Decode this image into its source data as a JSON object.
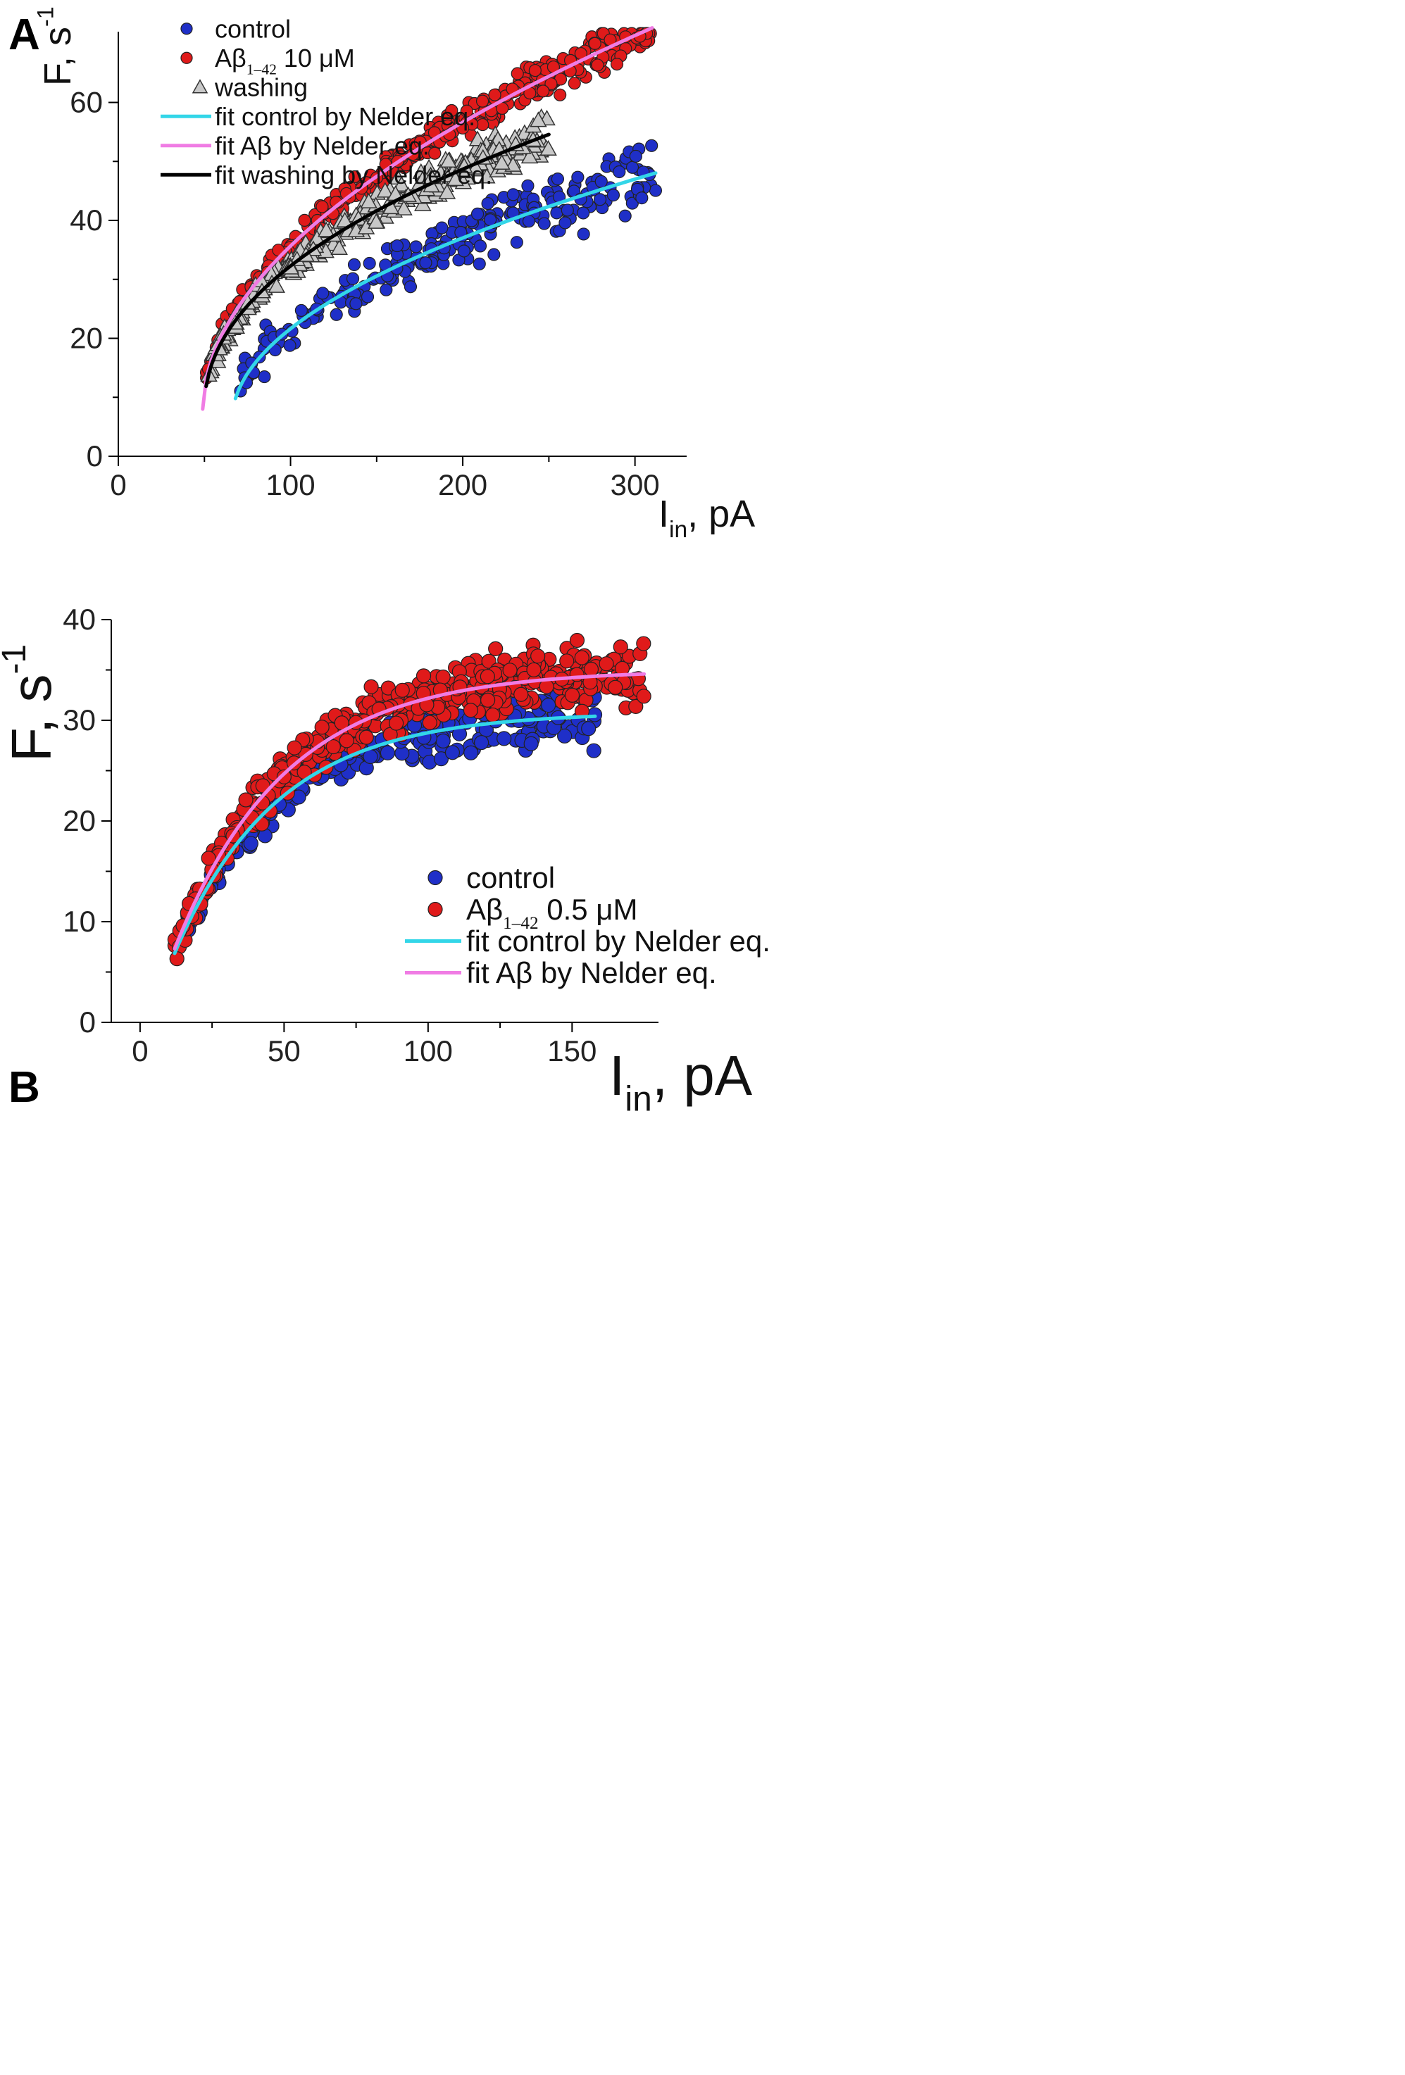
{
  "chart_data": [
    {
      "panel": "A",
      "type": "scatter",
      "xlabel": "I",
      "xlabel_sub": "in",
      "xlabel_unit": ", pA",
      "ylabel": "F, s",
      "ylabel_sup": "-1",
      "xlim": [
        0,
        330
      ],
      "ylim": [
        0,
        72
      ],
      "xticks": [
        0,
        100,
        200,
        300
      ],
      "yticks": [
        0,
        20,
        40,
        60
      ],
      "xtick_labels": [
        "0",
        "100",
        "200",
        "300"
      ],
      "ytick_labels": [
        "0",
        "20",
        "40",
        "60"
      ],
      "legend_position": "top-left",
      "series": [
        {
          "name": "control",
          "kind": "points",
          "marker": "circle",
          "color": "#1f2fc8",
          "x_range": [
            68,
            312
          ],
          "i0": 66,
          "f0": 6,
          "k": 2.68,
          "p": 0.5,
          "noise": 5,
          "count": 230,
          "seed": 11
        },
        {
          "name": "Aβ",
          "name_sub": "1–42",
          "name_rest": " 10 μM",
          "kind": "points",
          "marker": "circle",
          "color": "#e01a1a",
          "x_range": [
            50,
            310
          ],
          "i0": 49,
          "f0": 8,
          "k": 3.58,
          "p": 0.52,
          "noise": 3.2,
          "count": 380,
          "seed": 23
        },
        {
          "name": "washing",
          "kind": "points",
          "marker": "triangle",
          "color": "#c8c8c8",
          "x_range": [
            52,
            250
          ],
          "i0": 50,
          "f0": 8,
          "k": 3.86,
          "p": 0.47,
          "noise": 3,
          "count": 330,
          "seed": 37
        },
        {
          "name": "fit control by Nelder eq.",
          "kind": "fit",
          "color": "#33d6e8",
          "x_range": [
            68,
            312
          ],
          "i0": 66,
          "f0": 6,
          "k": 2.68,
          "p": 0.5
        },
        {
          "name": "fit Aβ by Nelder eq.",
          "kind": "fit",
          "color": "#f07ce4",
          "x_range": [
            49,
            310
          ],
          "i0": 49,
          "f0": 8,
          "k": 3.58,
          "p": 0.52
        },
        {
          "name": "fit washing  by Nelder eq.",
          "kind": "fit",
          "color": "#000000",
          "x_range": [
            51,
            250
          ],
          "i0": 50,
          "f0": 8,
          "k": 3.86,
          "p": 0.47
        }
      ]
    },
    {
      "panel": "B",
      "type": "scatter",
      "xlabel": "I",
      "xlabel_sub": "in",
      "xlabel_unit": ", pA",
      "ylabel": "F, s",
      "ylabel_sup": "-1",
      "xlim": [
        -10,
        180
      ],
      "ylim": [
        0,
        40
      ],
      "xticks": [
        0,
        50,
        100,
        150
      ],
      "yticks": [
        0,
        10,
        20,
        30,
        40
      ],
      "xtick_labels": [
        "0",
        "50",
        "100",
        "150"
      ],
      "ytick_labels": [
        "0",
        "10",
        "20",
        "30",
        "40"
      ],
      "legend_position": "bottom-right",
      "series": [
        {
          "name": "control",
          "kind": "points",
          "marker": "circle",
          "color": "#1f2fc8",
          "x_range": [
            14,
            158
          ],
          "i0": 3,
          "f0": 30.8,
          "k": 28,
          "p": 0.028,
          "noise": 2.8,
          "count": 240,
          "seed": 53
        },
        {
          "name": "Aβ",
          "name_sub": "1–42",
          "name_rest": " 0.5 μM",
          "kind": "points",
          "marker": "circle",
          "color": "#e01a1a",
          "x_range": [
            12,
            175
          ],
          "i0": 3,
          "f0": 35,
          "k": 30,
          "p": 0.026,
          "noise": 2.9,
          "count": 420,
          "seed": 71
        },
        {
          "name": "fit control by Nelder eq.",
          "kind": "fit",
          "color": "#33d6e8",
          "x_range": [
            12,
            158
          ],
          "i0": 3,
          "f0": 30.8,
          "k": 28,
          "p": 0.028
        },
        {
          "name": "fit Aβ by Nelder eq.",
          "kind": "fit",
          "color": "#f07ce4",
          "x_range": [
            12,
            175
          ],
          "i0": 3,
          "f0": 35,
          "k": 30,
          "p": 0.026
        }
      ]
    }
  ],
  "panels": {
    "a_label": "A",
    "b_label": "B"
  },
  "colors": {
    "axis": "#000000",
    "point_stroke": "#222222",
    "triangle_stroke": "#333333"
  }
}
